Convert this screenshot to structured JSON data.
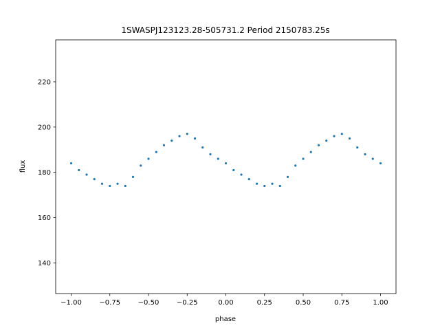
{
  "chart_data": {
    "type": "scatter",
    "title": "1SWASPJ123123.28-505731.2 Period 2150783.25s",
    "xlabel": "phase",
    "ylabel": "flux",
    "xlim": [
      -1.1,
      1.1
    ],
    "ylim": [
      126.5,
      238.5
    ],
    "xticks": [
      -1.0,
      -0.75,
      -0.5,
      -0.25,
      0.0,
      0.25,
      0.5,
      0.75,
      1.0
    ],
    "xtick_labels": [
      "−1.00",
      "−0.75",
      "−0.50",
      "−0.25",
      "0.00",
      "0.25",
      "0.50",
      "0.75",
      "1.00"
    ],
    "yticks": [
      140,
      160,
      180,
      200,
      220
    ],
    "ytick_labels": [
      "140",
      "160",
      "180",
      "200",
      "220"
    ],
    "grid": false,
    "marker_color": "#1f77b4",
    "series": [
      {
        "x": [
          -1.0,
          -0.95,
          -0.9,
          -0.85,
          -0.8,
          -0.75,
          -0.7,
          -0.65,
          -0.6,
          -0.55,
          -0.5,
          -0.45,
          -0.4,
          -0.35,
          -0.3,
          -0.25,
          -0.2,
          -0.15,
          -0.1,
          -0.05,
          0.0,
          0.05,
          0.1,
          0.15,
          0.2,
          0.25,
          0.3,
          0.35,
          0.4,
          0.45,
          0.5,
          0.55,
          0.6,
          0.65,
          0.7,
          0.75,
          0.8,
          0.85,
          0.9,
          0.95,
          1.0
        ],
        "y": [
          184,
          181,
          179,
          177,
          175,
          174,
          175,
          174,
          178,
          183,
          186,
          189,
          192,
          194,
          196,
          197,
          195,
          191,
          188,
          186,
          184,
          181,
          179,
          177,
          175,
          174,
          175,
          174,
          178,
          183,
          186,
          189,
          192,
          194,
          196,
          197,
          195,
          191,
          188,
          186,
          184
        ]
      }
    ]
  }
}
